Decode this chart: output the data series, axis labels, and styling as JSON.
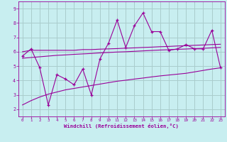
{
  "xlabel": "Windchill (Refroidissement éolien,°C)",
  "xlim": [
    -0.5,
    23.5
  ],
  "ylim": [
    1.5,
    9.5
  ],
  "xticks": [
    0,
    1,
    2,
    3,
    4,
    5,
    6,
    7,
    8,
    9,
    10,
    11,
    12,
    13,
    14,
    15,
    16,
    17,
    18,
    19,
    20,
    21,
    22,
    23
  ],
  "yticks": [
    2,
    3,
    4,
    5,
    6,
    7,
    8,
    9
  ],
  "bg_color": "#c8eef0",
  "line_color": "#990099",
  "grid_color": "#aacccc",
  "data_x": [
    0,
    1,
    2,
    3,
    4,
    5,
    6,
    7,
    8,
    9,
    10,
    11,
    12,
    13,
    14,
    15,
    16,
    17,
    18,
    19,
    20,
    21,
    22,
    23
  ],
  "data_y": [
    5.7,
    6.2,
    4.9,
    2.3,
    4.4,
    4.1,
    3.7,
    4.8,
    3.0,
    5.5,
    6.6,
    8.2,
    6.3,
    7.8,
    8.7,
    7.4,
    7.4,
    6.1,
    6.2,
    6.5,
    6.2,
    6.2,
    7.5,
    4.9
  ],
  "trend_y": [
    5.55,
    5.6,
    5.65,
    5.7,
    5.75,
    5.78,
    5.82,
    5.85,
    5.88,
    5.92,
    5.95,
    5.98,
    6.0,
    6.03,
    6.06,
    6.09,
    6.12,
    6.14,
    6.17,
    6.19,
    6.22,
    6.24,
    6.27,
    6.3
  ],
  "upper_y": [
    6.0,
    6.1,
    6.1,
    6.1,
    6.1,
    6.1,
    6.1,
    6.15,
    6.15,
    6.18,
    6.2,
    6.22,
    6.25,
    6.27,
    6.3,
    6.32,
    6.35,
    6.37,
    6.4,
    6.42,
    6.45,
    6.47,
    6.5,
    6.52
  ],
  "lower_y": [
    2.3,
    2.6,
    2.85,
    3.05,
    3.2,
    3.35,
    3.45,
    3.55,
    3.65,
    3.75,
    3.85,
    3.95,
    4.02,
    4.1,
    4.17,
    4.25,
    4.32,
    4.38,
    4.44,
    4.5,
    4.6,
    4.7,
    4.8,
    4.88
  ]
}
